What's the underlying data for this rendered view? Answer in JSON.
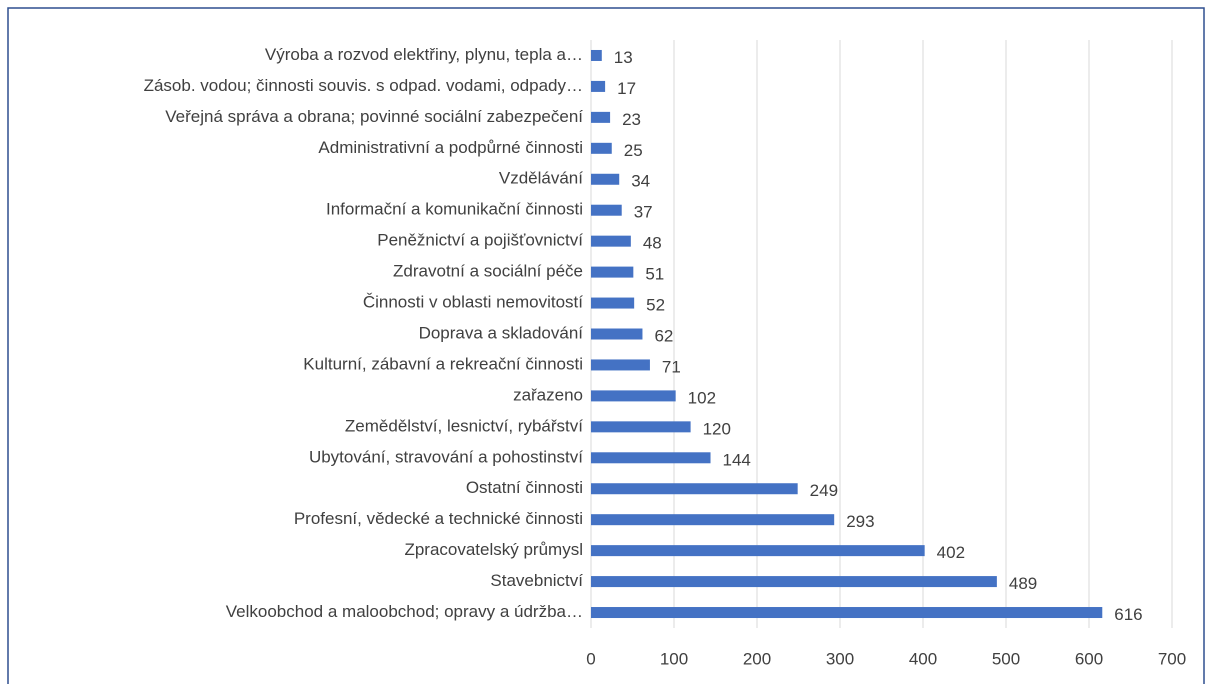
{
  "chart_data": {
    "type": "bar",
    "orientation": "horizontal",
    "color": "#4472c4",
    "categories": [
      "Výroba a rozvod elektřiny, plynu, tepla a…",
      "Zásob. vodou; činnosti souvis. s odpad. vodami, odpady…",
      "Veřejná správa a obrana; povinné sociální zabezpečení",
      "Administrativní a podpůrné činnosti",
      "Vzdělávání",
      "Informační a komunikační činnosti",
      "Peněžnictví a pojišťovnictví",
      "Zdravotní a sociální péče",
      "Činnosti v oblasti nemovitostí",
      "Doprava a skladování",
      "Kulturní, zábavní a rekreační činnosti",
      "zařazeno",
      "Zemědělství, lesnictví, rybářství",
      "Ubytování, stravování a pohostinství",
      "Ostatní činnosti",
      "Profesní, vědecké a technické činnosti",
      "Zpracovatelský průmysl",
      "Stavebnictví",
      "Velkoobchod a maloobchod; opravy a údržba…"
    ],
    "values": [
      13,
      17,
      23,
      25,
      34,
      37,
      48,
      51,
      52,
      62,
      71,
      102,
      120,
      144,
      249,
      293,
      402,
      489,
      616
    ],
    "xlim": [
      0,
      700
    ],
    "xticks": [
      0,
      100,
      200,
      300,
      400,
      500,
      600,
      700
    ],
    "grid": true
  }
}
